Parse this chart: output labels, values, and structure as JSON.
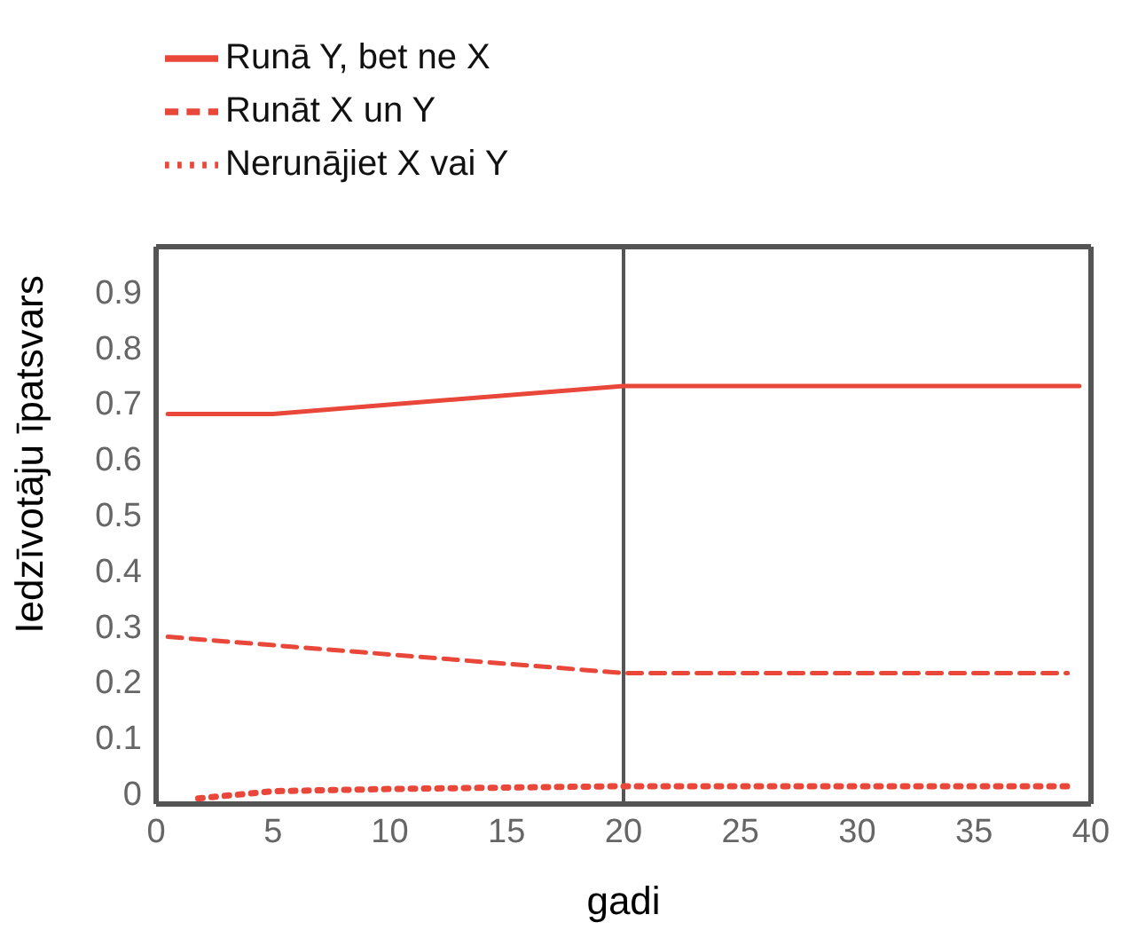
{
  "chart_data": {
    "type": "line",
    "xlabel": "gadi",
    "ylabel": "Iedzīvotāju īpatsvars",
    "xlim": [
      0,
      40
    ],
    "xticks": [
      0,
      5,
      10,
      15,
      20,
      25,
      30,
      35,
      40
    ],
    "ylim": [
      -0.02,
      0.98
    ],
    "yticks": [
      0,
      0.1,
      0.2,
      0.3,
      0.4,
      0.5,
      0.6,
      0.7,
      0.8,
      0.9
    ],
    "grid": false,
    "legend": "top left",
    "marker": "none",
    "ref_lines": [
      {
        "axis": "x",
        "value": 20,
        "color": "#555555"
      }
    ],
    "series": [
      {
        "name": "Runā Y, bet ne X",
        "color": "#e8473a",
        "line_style": "solid",
        "x": [
          0.5,
          5,
          20,
          39.5
        ],
        "values": [
          0.68,
          0.68,
          0.73,
          0.73
        ]
      },
      {
        "name": "Runāt X un Y",
        "color": "#e8473a",
        "line_style": "dashed",
        "x": [
          0.5,
          20,
          39
        ],
        "values": [
          0.28,
          0.215,
          0.215
        ]
      },
      {
        "name": "Nerunājiet X vai Y",
        "color": "#e8473a",
        "line_style": "dotted",
        "x": [
          1.8,
          5,
          10,
          20,
          39
        ],
        "values": [
          -0.01,
          0.003,
          0.007,
          0.012,
          0.012
        ]
      }
    ]
  }
}
